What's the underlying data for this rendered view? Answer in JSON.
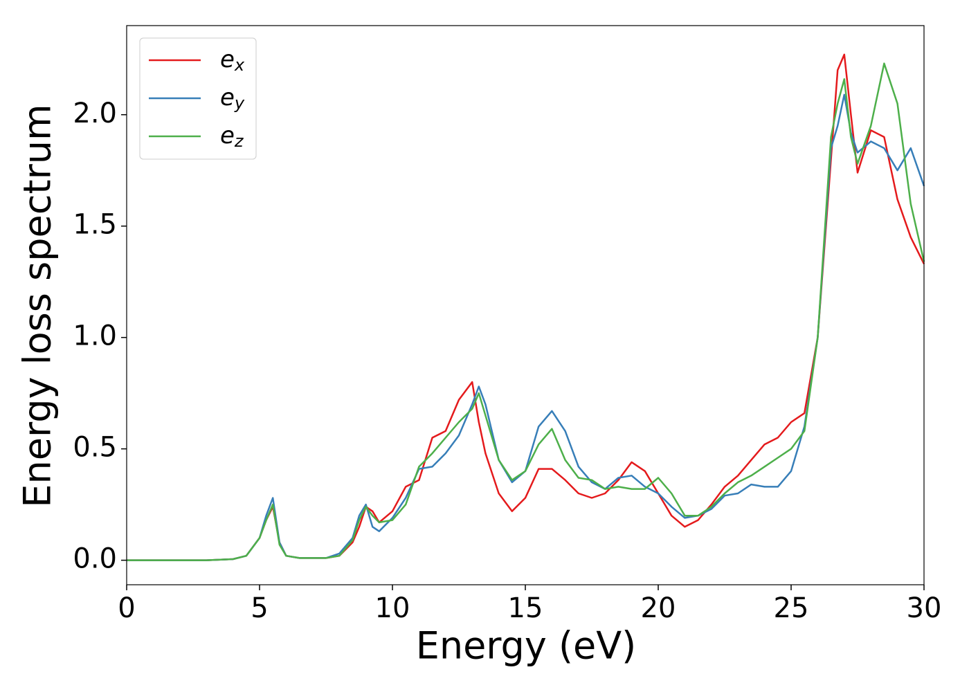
{
  "chart_data": {
    "type": "line",
    "xlabel": "Energy (eV)",
    "ylabel": "Energy loss spectrum",
    "x": [
      0,
      1,
      2,
      3,
      4,
      4.5,
      5,
      5.25,
      5.5,
      5.75,
      6,
      6.5,
      7,
      7.5,
      8,
      8.5,
      8.75,
      9,
      9.25,
      9.5,
      10,
      10.5,
      11,
      11.5,
      12,
      12.5,
      13,
      13.25,
      13.5,
      14,
      14.5,
      15,
      15.5,
      16,
      16.5,
      17,
      17.5,
      18,
      18.5,
      19,
      19.5,
      20,
      20.5,
      21,
      21.5,
      22,
      22.5,
      23,
      23.5,
      24,
      24.5,
      25,
      25.5,
      26,
      26.5,
      26.75,
      27,
      27.25,
      27.5,
      28,
      28.5,
      29,
      29.5,
      30
    ],
    "series": [
      {
        "name": "ex",
        "color": "#e41a1c",
        "values": [
          0,
          0,
          0,
          0,
          0.005,
          0.02,
          0.1,
          0.18,
          0.24,
          0.08,
          0.02,
          0.01,
          0.01,
          0.01,
          0.02,
          0.08,
          0.15,
          0.24,
          0.22,
          0.17,
          0.22,
          0.33,
          0.36,
          0.55,
          0.58,
          0.72,
          0.8,
          0.62,
          0.48,
          0.3,
          0.22,
          0.28,
          0.41,
          0.41,
          0.36,
          0.3,
          0.28,
          0.3,
          0.36,
          0.44,
          0.4,
          0.3,
          0.2,
          0.15,
          0.18,
          0.25,
          0.33,
          0.38,
          0.45,
          0.52,
          0.55,
          0.62,
          0.66,
          1.0,
          1.8,
          2.2,
          2.27,
          2.0,
          1.74,
          1.93,
          1.9,
          1.62,
          1.45,
          1.33
        ]
      },
      {
        "name": "ey",
        "color": "#377eb8",
        "values": [
          0,
          0,
          0,
          0,
          0.005,
          0.02,
          0.1,
          0.2,
          0.28,
          0.08,
          0.02,
          0.01,
          0.01,
          0.01,
          0.03,
          0.1,
          0.2,
          0.25,
          0.15,
          0.13,
          0.19,
          0.28,
          0.41,
          0.42,
          0.48,
          0.56,
          0.7,
          0.78,
          0.7,
          0.45,
          0.35,
          0.4,
          0.6,
          0.67,
          0.58,
          0.42,
          0.35,
          0.32,
          0.37,
          0.38,
          0.33,
          0.3,
          0.24,
          0.19,
          0.2,
          0.23,
          0.29,
          0.3,
          0.34,
          0.33,
          0.33,
          0.4,
          0.6,
          1.0,
          1.85,
          1.95,
          2.09,
          1.92,
          1.83,
          1.88,
          1.85,
          1.75,
          1.85,
          1.68
        ]
      },
      {
        "name": "ez",
        "color": "#4daf4a",
        "values": [
          0,
          0,
          0,
          0,
          0.005,
          0.02,
          0.1,
          0.18,
          0.25,
          0.07,
          0.02,
          0.01,
          0.01,
          0.01,
          0.02,
          0.09,
          0.18,
          0.24,
          0.2,
          0.17,
          0.18,
          0.25,
          0.42,
          0.48,
          0.55,
          0.62,
          0.68,
          0.75,
          0.65,
          0.45,
          0.36,
          0.4,
          0.52,
          0.59,
          0.45,
          0.37,
          0.36,
          0.32,
          0.33,
          0.32,
          0.32,
          0.37,
          0.3,
          0.2,
          0.2,
          0.24,
          0.3,
          0.35,
          0.38,
          0.42,
          0.46,
          0.5,
          0.58,
          1.0,
          1.9,
          2.05,
          2.16,
          1.9,
          1.78,
          1.95,
          2.23,
          2.05,
          1.6,
          1.34
        ]
      }
    ],
    "xlim": [
      0,
      30
    ],
    "xticks": [
      0,
      5,
      10,
      15,
      20,
      25,
      30
    ],
    "ylim": [
      -0.11,
      2.4
    ],
    "yticks": [
      {
        "value": 0,
        "label": "0.0"
      },
      0.5,
      {
        "value": 1,
        "label": "1.0"
      },
      1.5,
      {
        "value": 2,
        "label": "2.0"
      }
    ],
    "legend": "upper left",
    "grid": false
  }
}
